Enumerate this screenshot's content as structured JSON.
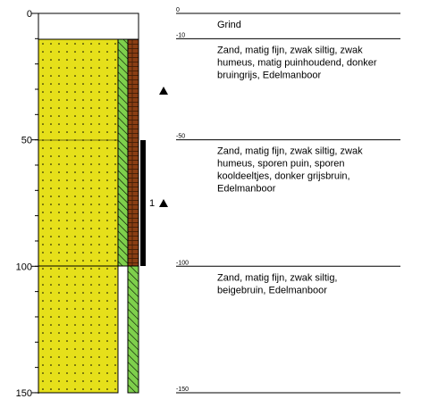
{
  "depth_axis": {
    "ticks": [
      0,
      50,
      100,
      150
    ]
  },
  "boundaries": [
    0,
    -10,
    -50,
    -100,
    -150
  ],
  "layers": [
    {
      "lines": [
        "Grind"
      ]
    },
    {
      "lines": [
        "Zand, matig fijn, zwak siltig, zwak",
        "humeus, matig puinhoudend, donker",
        "bruingrijs,  Edelmanboor"
      ]
    },
    {
      "lines": [
        "Zand, matig fijn, zwak siltig, zwak",
        "humeus, sporen puin, sporen",
        "kooldeeltjes, donker grijsbruin,",
        "Edelmanboor"
      ]
    },
    {
      "lines": [
        "Zand, matig fijn, zwak siltig,",
        "beigebruin,  Edelmanboor"
      ]
    }
  ],
  "sample": {
    "label": "1"
  }
}
